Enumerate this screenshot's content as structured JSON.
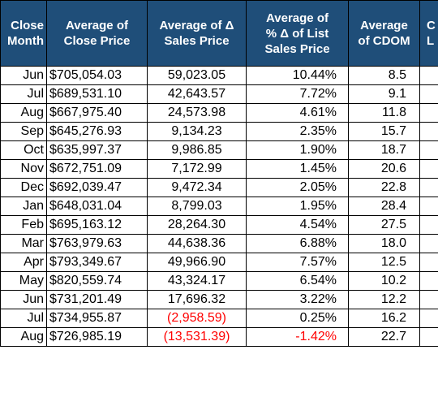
{
  "headers": {
    "month": [
      "Close",
      "Month"
    ],
    "close_price": [
      "Average of",
      "Close Price"
    ],
    "delta_sales": [
      "Average of Δ",
      "Sales Price"
    ],
    "pct_delta": [
      "Average of",
      "% Δ of List",
      "Sales Price"
    ],
    "cdom": [
      "Average",
      "of CDOM"
    ],
    "extra": [
      "C",
      "L"
    ]
  },
  "currency_symbol": "$",
  "rows": [
    {
      "month": "Jun",
      "close": "705,054.03",
      "delta": "59,023.05",
      "pct": "10.44%",
      "cdom": "8.5",
      "neg_delta": false,
      "neg_pct": false
    },
    {
      "month": "Jul",
      "close": "689,531.10",
      "delta": "42,643.57",
      "pct": "7.72%",
      "cdom": "9.1",
      "neg_delta": false,
      "neg_pct": false
    },
    {
      "month": "Aug",
      "close": "667,975.40",
      "delta": "24,573.98",
      "pct": "4.61%",
      "cdom": "11.8",
      "neg_delta": false,
      "neg_pct": false
    },
    {
      "month": "Sep",
      "close": "645,276.93",
      "delta": "9,134.23",
      "pct": "2.35%",
      "cdom": "15.7",
      "neg_delta": false,
      "neg_pct": false
    },
    {
      "month": "Oct",
      "close": "635,997.37",
      "delta": "9,986.85",
      "pct": "1.90%",
      "cdom": "18.7",
      "neg_delta": false,
      "neg_pct": false
    },
    {
      "month": "Nov",
      "close": "672,751.09",
      "delta": "7,172.99",
      "pct": "1.45%",
      "cdom": "20.6",
      "neg_delta": false,
      "neg_pct": false
    },
    {
      "month": "Dec",
      "close": "692,039.47",
      "delta": "9,472.34",
      "pct": "2.05%",
      "cdom": "22.8",
      "neg_delta": false,
      "neg_pct": false
    },
    {
      "month": "Jan",
      "close": "648,031.04",
      "delta": "8,799.03",
      "pct": "1.95%",
      "cdom": "28.4",
      "neg_delta": false,
      "neg_pct": false
    },
    {
      "month": "Feb",
      "close": "695,163.12",
      "delta": "28,264.30",
      "pct": "4.54%",
      "cdom": "27.5",
      "neg_delta": false,
      "neg_pct": false
    },
    {
      "month": "Mar",
      "close": "763,979.63",
      "delta": "44,638.36",
      "pct": "6.88%",
      "cdom": "18.0",
      "neg_delta": false,
      "neg_pct": false
    },
    {
      "month": "Apr",
      "close": "793,349.67",
      "delta": "49,966.90",
      "pct": "7.57%",
      "cdom": "12.5",
      "neg_delta": false,
      "neg_pct": false
    },
    {
      "month": "May",
      "close": "820,559.74",
      "delta": "43,324.17",
      "pct": "6.54%",
      "cdom": "10.2",
      "neg_delta": false,
      "neg_pct": false
    },
    {
      "month": "Jun",
      "close": "731,201.49",
      "delta": "17,696.32",
      "pct": "3.22%",
      "cdom": "12.2",
      "neg_delta": false,
      "neg_pct": false
    },
    {
      "month": "Jul",
      "close": "734,955.87",
      "delta": "(2,958.59)",
      "pct": "0.25%",
      "cdom": "16.2",
      "neg_delta": true,
      "neg_pct": false
    },
    {
      "month": "Aug",
      "close": "726,985.19",
      "delta": "(13,531.39)",
      "pct": "-1.42%",
      "cdom": "22.7",
      "neg_delta": true,
      "neg_pct": true
    }
  ],
  "colors": {
    "header_bg": "#1f4e79",
    "header_text": "#ffffff",
    "negative": "#ff0000",
    "grid": "#000000"
  }
}
